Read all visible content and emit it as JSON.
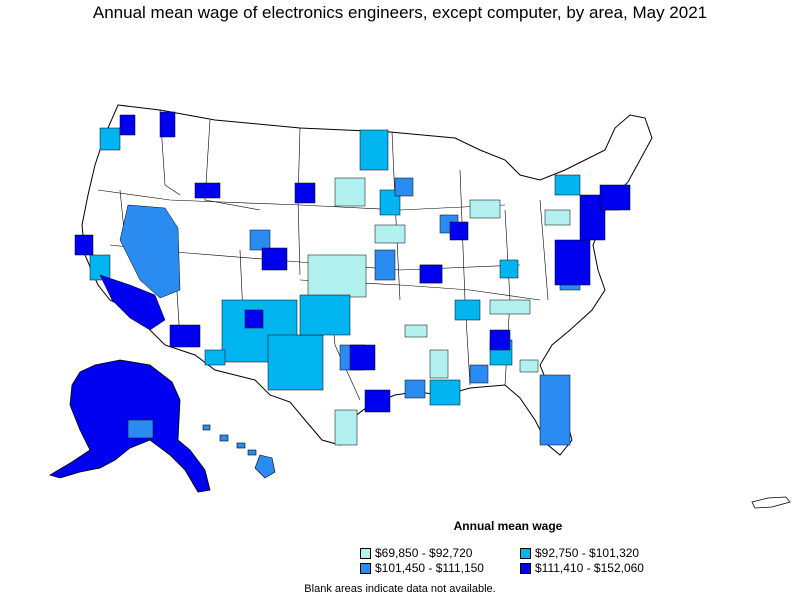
{
  "title": "Annual mean wage of electronics engineers, except computer, by area, May 2021",
  "colors": {
    "tier1": "#b3f0f0",
    "tier2": "#00b4f0",
    "tier3": "#2a8cf0",
    "tier4": "#0000f0",
    "blank": "#ffffff",
    "border": "#000000"
  },
  "legend": {
    "title": "Annual mean wage",
    "items": [
      {
        "label": "$69,850 - $92,720",
        "color": "#b3f0f0"
      },
      {
        "label": "$92,750 - $101,320",
        "color": "#00b4f0"
      },
      {
        "label": "$101,450 - $111,150",
        "color": "#2a8cf0"
      },
      {
        "label": "$111,410 - $152,060",
        "color": "#0000f0"
      }
    ]
  },
  "note": "Blank areas indicate data not available."
}
